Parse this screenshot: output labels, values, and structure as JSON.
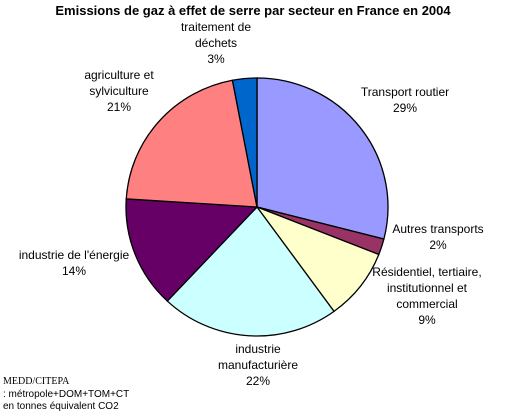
{
  "chart_data": {
    "type": "pie",
    "title": "Emissions de gaz à effet de serre par secteur en France en 2004",
    "slices": [
      {
        "label": [
          "Transport routier"
        ],
        "pct_label": "29%",
        "value": 29,
        "color": "#9999ff"
      },
      {
        "label": [
          "Autres transports"
        ],
        "pct_label": "2%",
        "value": 2,
        "color": "#993366"
      },
      {
        "label": [
          "Résidentiel, tertiaire,",
          "institutionnel et",
          "commercial"
        ],
        "pct_label": "9%",
        "value": 9,
        "color": "#ffffcc"
      },
      {
        "label": [
          "industrie",
          "manufacturière"
        ],
        "pct_label": "22%",
        "value": 22,
        "color": "#ccffff"
      },
      {
        "label": [
          "industrie de l'énergie"
        ],
        "pct_label": "14%",
        "value": 14,
        "color": "#660066"
      },
      {
        "label": [
          "agriculture et",
          "sylviculture"
        ],
        "pct_label": "21%",
        "value": 21,
        "color": "#ff8080"
      },
      {
        "label": [
          "traitement de",
          "déchets"
        ],
        "pct_label": "3%",
        "value": 3,
        "color": "#0066cc"
      }
    ]
  },
  "footnote": {
    "line1": "MEDD/CITEPA",
    "line2": ": métropole+DOM+TOM+CT",
    "line3": "en tonnes équivalent CO2"
  }
}
